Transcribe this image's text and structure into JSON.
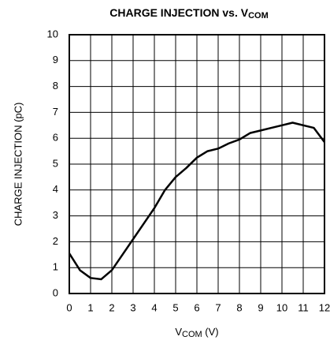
{
  "chart_data": {
    "type": "line",
    "title": "CHARGE INJECTION vs. V",
    "title_subscript": "COM",
    "x_label": "V",
    "x_label_subscript": "COM",
    "x_label_suffix": " (V)",
    "y_label": "CHARGE INJECTION (pC)",
    "x": [
      0,
      0.5,
      1,
      1.5,
      2,
      2.5,
      3,
      3.5,
      4,
      4.5,
      5,
      5.5,
      6,
      6.5,
      7,
      7.5,
      8,
      8.5,
      9,
      9.5,
      10,
      10.5,
      11,
      11.5,
      12
    ],
    "series": [
      {
        "color": "#000000",
        "values": [
          1.55,
          0.9,
          0.6,
          0.55,
          0.9,
          1.5,
          2.1,
          2.7,
          3.3,
          4.0,
          4.5,
          4.85,
          5.25,
          5.5,
          5.6,
          5.8,
          5.95,
          6.2,
          6.3,
          6.4,
          6.5,
          6.6,
          6.5,
          6.4,
          5.85
        ]
      }
    ],
    "xlim": [
      0,
      12
    ],
    "xticks": [
      0,
      1,
      2,
      3,
      4,
      5,
      6,
      7,
      8,
      9,
      10,
      11,
      12
    ],
    "ylim": [
      0,
      10
    ],
    "yticks": [
      0,
      1,
      2,
      3,
      4,
      5,
      6,
      7,
      8,
      9,
      10
    ],
    "grid": true
  }
}
